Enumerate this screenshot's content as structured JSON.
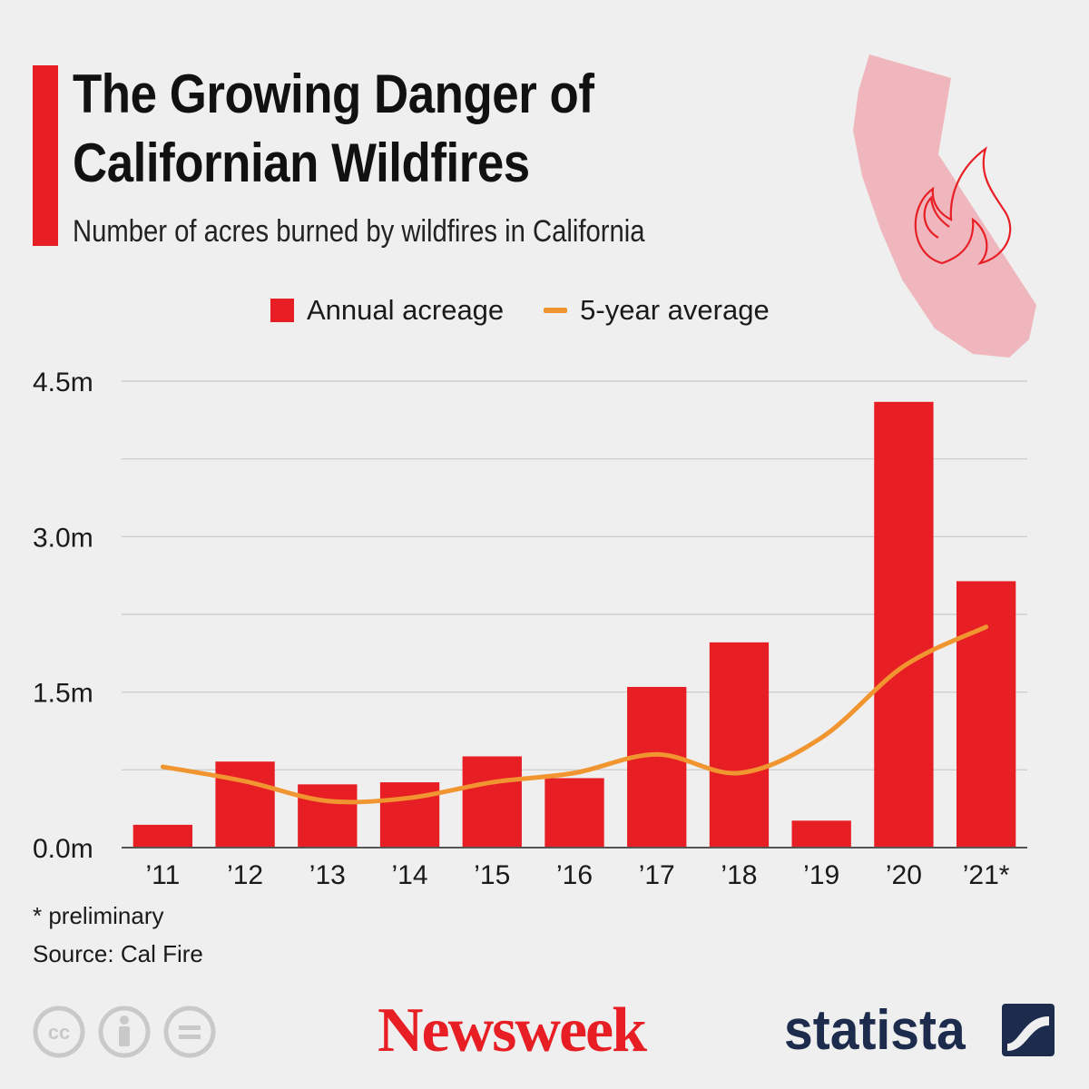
{
  "header": {
    "title": "The Growing Danger of Californian Wildfires",
    "subtitle": "Number of acres burned by wildfires in California"
  },
  "legend": {
    "bar_label": "Annual acreage",
    "line_label": "5-year average"
  },
  "footer": {
    "note": "* preliminary",
    "source": "Source: Cal Fire",
    "brand_left": "Newsweek",
    "brand_right": "statista"
  },
  "icons": [
    "california-map-icon",
    "flame-icon",
    "cc-icon",
    "attribution-icon",
    "no-derivatives-icon",
    "statista-logo-icon"
  ],
  "colors": {
    "bar": "#e81e25",
    "line": "#f0952f",
    "grid": "#c8c8c8",
    "axis": "#555555"
  },
  "chart_data": {
    "type": "bar",
    "categories": [
      "’11",
      "’12",
      "’13",
      "’14",
      "’15",
      "’16",
      "’17",
      "’18",
      "’19",
      "’20",
      "’21*"
    ],
    "series": [
      {
        "name": "Annual acreage",
        "type": "bar",
        "values": [
          0.22,
          0.83,
          0.61,
          0.63,
          0.88,
          0.67,
          1.55,
          1.98,
          0.26,
          4.3,
          2.57
        ]
      },
      {
        "name": "5-year average",
        "type": "line",
        "values": [
          0.78,
          0.64,
          0.45,
          0.48,
          0.63,
          0.72,
          0.9,
          0.72,
          1.06,
          1.75,
          2.13
        ]
      }
    ],
    "yticks": [
      0.0,
      1.5,
      3.0,
      4.5
    ],
    "ytick_labels": [
      "0.0m",
      "1.5m",
      "3.0m",
      "4.5m"
    ],
    "ylim": [
      0,
      4.5
    ],
    "grid": true,
    "legend_position": "top-center"
  }
}
